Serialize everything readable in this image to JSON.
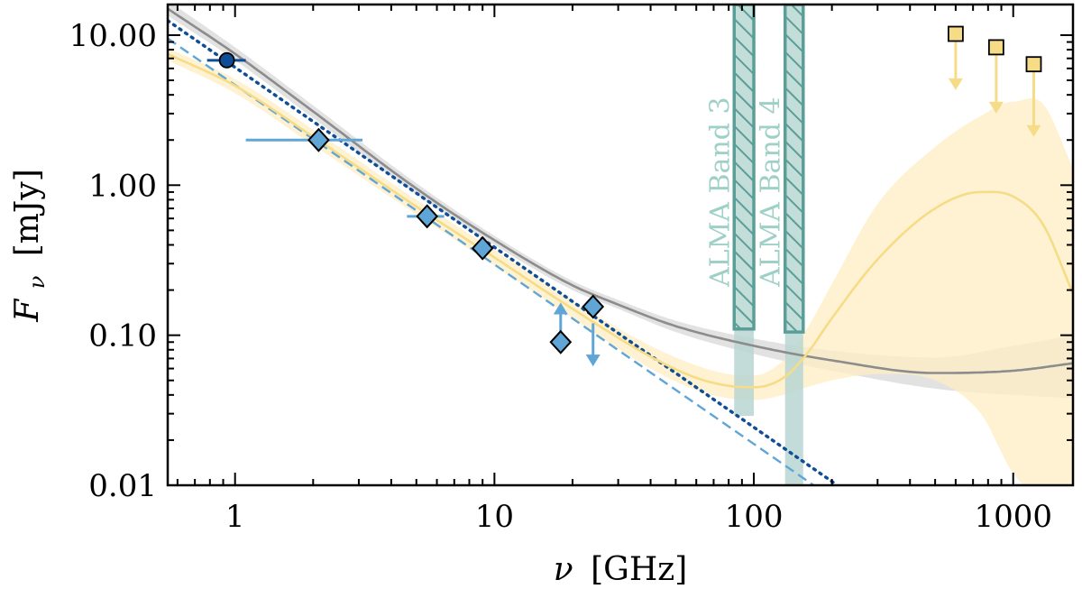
{
  "chart_data": {
    "type": "scatter",
    "title": "",
    "xlabel": {
      "symbol": "ν",
      "unit": "[GHz]"
    },
    "ylabel": {
      "symbol": "F",
      "subscript": "ν",
      "unit": "[mJy]"
    },
    "xscale": "log",
    "yscale": "log",
    "xlim": [
      0.55,
      1700
    ],
    "ylim": [
      0.01,
      16
    ],
    "x_ticks": [
      1,
      10,
      100,
      1000
    ],
    "x_tick_labels": [
      "1",
      "10",
      "100",
      "1000"
    ],
    "y_ticks": [
      0.01,
      0.1,
      1,
      10
    ],
    "y_tick_labels": [
      "0.01",
      "0.10",
      "1.00",
      "10.00"
    ],
    "colors": {
      "blue_light": "#5fa6d6",
      "blue_dark": "#0f4e96",
      "gray": "#8c8c8c",
      "gray_fill": "#d8d8d8",
      "yellow": "#f6dc86",
      "yellow_fill": "#fdeec3",
      "teal": "#5b9e98",
      "teal_fill": "#c3ddd9",
      "teal_light": "#b9d6d2"
    },
    "bands": [
      {
        "label": "ALMA Band 3",
        "x_range": [
          84,
          100
        ],
        "box_y": [
          0.11,
          16
        ],
        "strip_y": [
          0.029,
          0.11
        ]
      },
      {
        "label": "ALMA Band 4",
        "x_range": [
          132,
          155
        ],
        "box_y": [
          0.105,
          16
        ],
        "strip_y": [
          0.01,
          0.105
        ]
      }
    ],
    "series": [
      {
        "name": "dark circle point",
        "kind": "points",
        "marker": "circle",
        "color": "#0f4e96",
        "points": [
          {
            "x": 0.93,
            "y": 6.8,
            "xerr": [
              0.78,
              1.1
            ]
          }
        ]
      },
      {
        "name": "diamond detections",
        "kind": "points",
        "marker": "diamond",
        "color": "#5fa6d6",
        "points": [
          {
            "x": 2.1,
            "y": 2.0,
            "xerr": [
              1.1,
              3.1
            ]
          },
          {
            "x": 5.5,
            "y": 0.62,
            "xerr": [
              4.6,
              6.4
            ]
          },
          {
            "x": 9.0,
            "y": 0.38
          },
          {
            "x": 24.0,
            "y": 0.155
          }
        ]
      },
      {
        "name": "diamond lower limit",
        "kind": "points",
        "marker": "diamond",
        "color": "#5fa6d6",
        "points": [
          {
            "x": 18.0,
            "y": 0.09,
            "limit": "lower",
            "arrow_to": 0.165
          }
        ]
      },
      {
        "name": "upper limit at 24 GHz",
        "kind": "limits",
        "marker": "none",
        "color": "#5fa6d6",
        "points": [
          {
            "x": 24.0,
            "y": 0.12,
            "limit": "upper",
            "arrow_to": 0.062
          }
        ]
      },
      {
        "name": "square upper limits",
        "kind": "limits",
        "marker": "square",
        "color": "#f6dc86",
        "points": [
          {
            "x": 600,
            "y": 10.2,
            "limit": "upper",
            "arrow_to": 4.3
          },
          {
            "x": 860,
            "y": 8.3,
            "limit": "upper",
            "arrow_to": 3.0
          },
          {
            "x": 1200,
            "y": 6.4,
            "limit": "upper",
            "arrow_to": 2.1
          }
        ]
      },
      {
        "name": "dotted power law",
        "kind": "line",
        "style": "dotted",
        "color": "#0f4e96",
        "points": [
          {
            "x": 0.55,
            "y": 12.5
          },
          {
            "x": 210,
            "y": 0.01
          }
        ]
      },
      {
        "name": "dashed power law",
        "kind": "line",
        "style": "dashed",
        "color": "#5fa6d6",
        "points": [
          {
            "x": 0.55,
            "y": 9.5
          },
          {
            "x": 170,
            "y": 0.01
          }
        ]
      },
      {
        "name": "gray model",
        "kind": "curve_band",
        "color": "#8c8c8c",
        "fill": "#d8d8d8",
        "x": [
          0.55,
          1,
          2,
          5,
          10,
          20,
          30,
          50,
          100,
          200,
          500,
          1000,
          1700
        ],
        "y": [
          15,
          7.5,
          3.1,
          0.95,
          0.43,
          0.215,
          0.16,
          0.115,
          0.085,
          0.068,
          0.056,
          0.058,
          0.065
        ],
        "lower": [
          13.5,
          6.8,
          2.8,
          0.87,
          0.4,
          0.2,
          0.15,
          0.105,
          0.075,
          0.058,
          0.044,
          0.04,
          0.038
        ],
        "upper": [
          17,
          8.3,
          3.4,
          1.03,
          0.46,
          0.23,
          0.172,
          0.125,
          0.095,
          0.079,
          0.071,
          0.085,
          0.1
        ]
      },
      {
        "name": "yellow model",
        "kind": "curve_band",
        "color": "#f6dc86",
        "fill": "#fdeec3",
        "x": [
          0.55,
          1,
          2,
          5,
          10,
          20,
          40,
          60,
          80,
          100,
          130,
          160,
          200,
          300,
          500,
          750,
          1000,
          1300,
          1700
        ],
        "y": [
          7.5,
          4.6,
          2.1,
          0.72,
          0.33,
          0.15,
          0.072,
          0.052,
          0.046,
          0.045,
          0.052,
          0.075,
          0.13,
          0.32,
          0.7,
          0.9,
          0.84,
          0.55,
          0.19
        ],
        "lower": [
          6.8,
          4.1,
          1.85,
          0.64,
          0.29,
          0.13,
          0.06,
          0.043,
          0.038,
          0.037,
          0.04,
          0.045,
          0.05,
          0.055,
          0.05,
          0.03,
          0.012,
          0.008,
          0.006
        ],
        "upper": [
          8.2,
          5.1,
          2.35,
          0.8,
          0.37,
          0.17,
          0.085,
          0.063,
          0.055,
          0.054,
          0.068,
          0.11,
          0.22,
          0.75,
          1.8,
          2.9,
          3.6,
          3.5,
          1.3
        ]
      }
    ]
  }
}
